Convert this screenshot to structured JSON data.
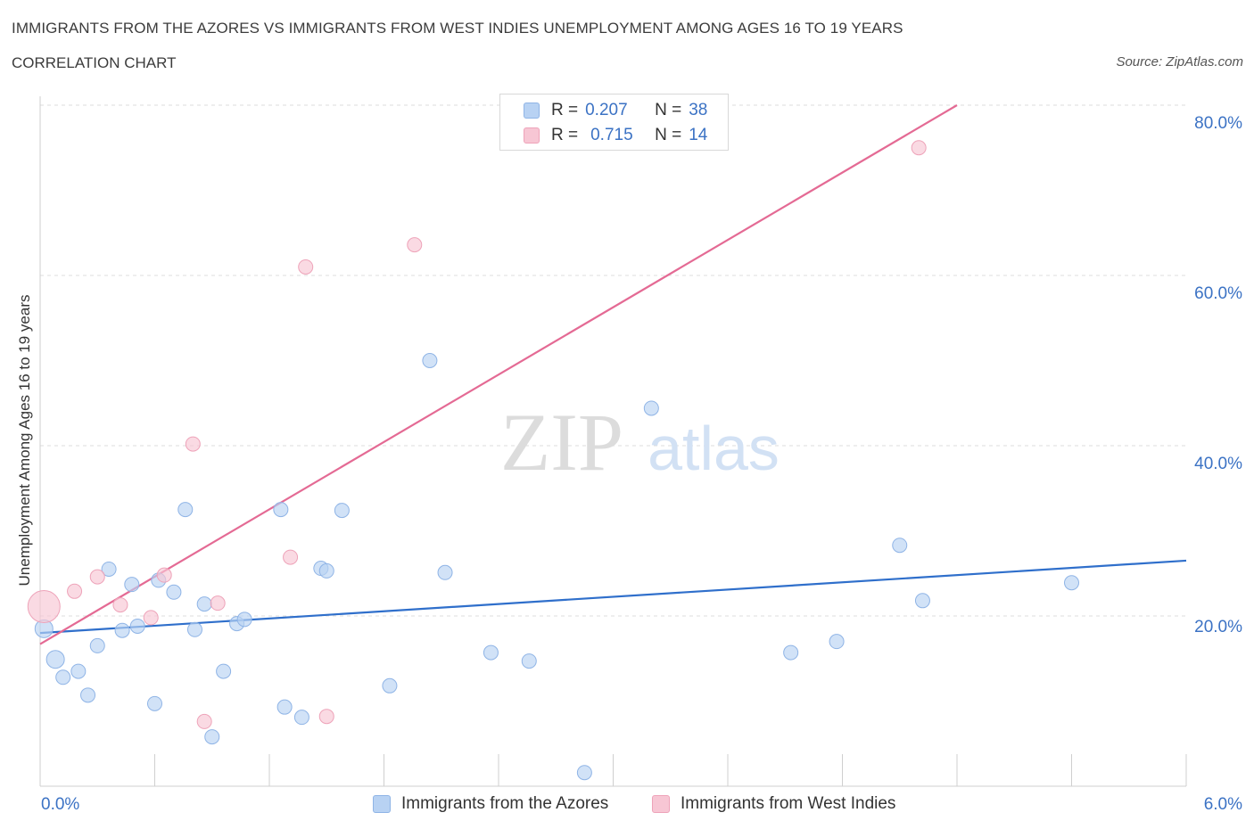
{
  "title": "IMMIGRANTS FROM THE AZORES VS IMMIGRANTS FROM WEST INDIES UNEMPLOYMENT AMONG AGES 16 TO 19 YEARS",
  "subtitle": "CORRELATION CHART",
  "source": "Source: ZipAtlas.com",
  "watermark": {
    "zip": "ZIP",
    "atlas": "atlas"
  },
  "legend": {
    "rows": [
      {
        "r_label": "R =",
        "r_value": "0.207",
        "n_label": "N =",
        "n_value": "38"
      },
      {
        "r_label": "R =",
        "r_value": "0.715",
        "n_label": "N =",
        "n_value": "14"
      }
    ]
  },
  "bottom_legend": {
    "series1": "Immigrants from the Azores",
    "series2": "Immigrants from West Indies"
  },
  "colors": {
    "azores_fill": "#b8d2f3",
    "azores_stroke": "#8fb4e6",
    "azores_line": "#2f6fcb",
    "westindies_fill": "#f7c6d4",
    "westindies_stroke": "#eea3b9",
    "westindies_line": "#e46a94",
    "tick_label": "#3b72c4",
    "grid": "#dcdcdc"
  },
  "chart_data": {
    "type": "scatter",
    "xlabel": "",
    "ylabel": "Unemployment Among Ages 16 to 19 years",
    "xlim": [
      0,
      6
    ],
    "ylim": [
      0,
      80
    ],
    "x_tick_labels": [
      "0.0%",
      "6.0%"
    ],
    "y_tick_labels": [
      "20.0%",
      "40.0%",
      "60.0%",
      "80.0%"
    ],
    "y_ticks": [
      20,
      40,
      60,
      80
    ],
    "grid": "horizontal dashed",
    "series": [
      {
        "name": "Immigrants from the Azores",
        "points": [
          [
            0.02,
            18.5
          ],
          [
            0.08,
            14.9
          ],
          [
            0.12,
            12.8
          ],
          [
            0.2,
            13.5
          ],
          [
            0.25,
            10.7
          ],
          [
            0.3,
            16.5
          ],
          [
            0.36,
            25.5
          ],
          [
            0.43,
            18.3
          ],
          [
            0.48,
            23.7
          ],
          [
            0.51,
            18.8
          ],
          [
            0.6,
            9.7
          ],
          [
            0.62,
            24.2
          ],
          [
            0.7,
            22.8
          ],
          [
            0.76,
            32.5
          ],
          [
            0.81,
            18.4
          ],
          [
            0.86,
            21.4
          ],
          [
            0.9,
            5.8
          ],
          [
            0.96,
            13.5
          ],
          [
            1.03,
            19.1
          ],
          [
            1.07,
            19.6
          ],
          [
            1.26,
            32.5
          ],
          [
            1.28,
            9.3
          ],
          [
            1.37,
            8.1
          ],
          [
            1.47,
            25.6
          ],
          [
            1.5,
            25.3
          ],
          [
            1.58,
            32.4
          ],
          [
            1.83,
            11.8
          ],
          [
            2.04,
            50.0
          ],
          [
            2.12,
            25.1
          ],
          [
            2.36,
            15.7
          ],
          [
            2.56,
            14.7
          ],
          [
            2.85,
            1.6
          ],
          [
            3.2,
            44.4
          ],
          [
            3.93,
            15.7
          ],
          [
            4.17,
            17.0
          ],
          [
            4.5,
            28.3
          ],
          [
            4.62,
            21.8
          ],
          [
            5.4,
            23.9
          ]
        ],
        "trend": {
          "x": [
            0,
            6
          ],
          "y": [
            18.0,
            26.5
          ]
        }
      },
      {
        "name": "Immigrants from West Indies",
        "points": [
          [
            0.02,
            21.1
          ],
          [
            0.18,
            22.9
          ],
          [
            0.3,
            24.6
          ],
          [
            0.42,
            21.3
          ],
          [
            0.58,
            19.8
          ],
          [
            0.65,
            24.8
          ],
          [
            0.8,
            40.2
          ],
          [
            0.86,
            7.6
          ],
          [
            0.93,
            21.5
          ],
          [
            1.31,
            26.9
          ],
          [
            1.39,
            61.0
          ],
          [
            1.5,
            8.2
          ],
          [
            1.96,
            63.6
          ],
          [
            4.6,
            75.0
          ]
        ],
        "trend": {
          "x": [
            0,
            4.8
          ],
          "y": [
            16.7,
            80.0
          ]
        }
      }
    ]
  }
}
